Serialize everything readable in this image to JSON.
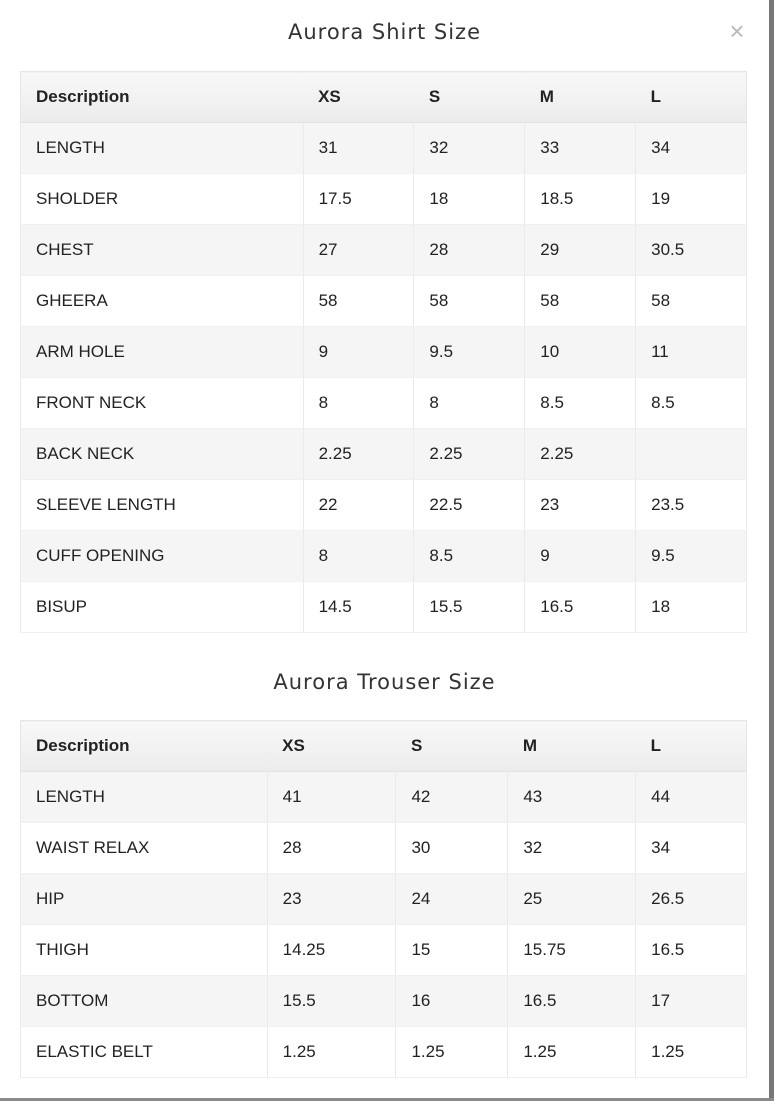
{
  "close_icon": "close-x-icon",
  "shirt": {
    "title": "Aurora Shirt Size",
    "headers": [
      "Description",
      "XS",
      "S",
      "M",
      "L"
    ],
    "rows": [
      [
        "LENGTH",
        "31",
        "32",
        "33",
        "34"
      ],
      [
        "SHOLDER",
        "17.5",
        "18",
        "18.5",
        "19"
      ],
      [
        "CHEST",
        "27",
        "28",
        "29",
        "30.5"
      ],
      [
        "GHEERA",
        "58",
        "58",
        "58",
        "58"
      ],
      [
        "ARM HOLE",
        "9",
        "9.5",
        "10",
        "11"
      ],
      [
        "FRONT NECK",
        "8",
        "8",
        "8.5",
        "8.5"
      ],
      [
        "BACK NECK",
        "2.25",
        "2.25",
        "2.25",
        ""
      ],
      [
        "SLEEVE LENGTH",
        "22",
        "22.5",
        "23",
        "23.5"
      ],
      [
        "CUFF OPENING",
        "8",
        "8.5",
        "9",
        "9.5"
      ],
      [
        "BISUP",
        "14.5",
        "15.5",
        "16.5",
        "18"
      ]
    ]
  },
  "trouser": {
    "title": "Aurora Trouser Size",
    "headers": [
      "Description",
      "XS",
      "S",
      "M",
      "L"
    ],
    "rows": [
      [
        "LENGTH",
        "41",
        "42",
        "43",
        "44"
      ],
      [
        "WAIST RELAX",
        "28",
        "30",
        "32",
        "34"
      ],
      [
        "HIP",
        "23",
        "24",
        "25",
        "26.5"
      ],
      [
        "THIGH",
        "14.25",
        "15",
        "15.75",
        "16.5"
      ],
      [
        "BOTTOM",
        "15.5",
        "16",
        "16.5",
        "17"
      ],
      [
        "ELASTIC BELT",
        "1.25",
        "1.25",
        "1.25",
        "1.25"
      ]
    ]
  }
}
